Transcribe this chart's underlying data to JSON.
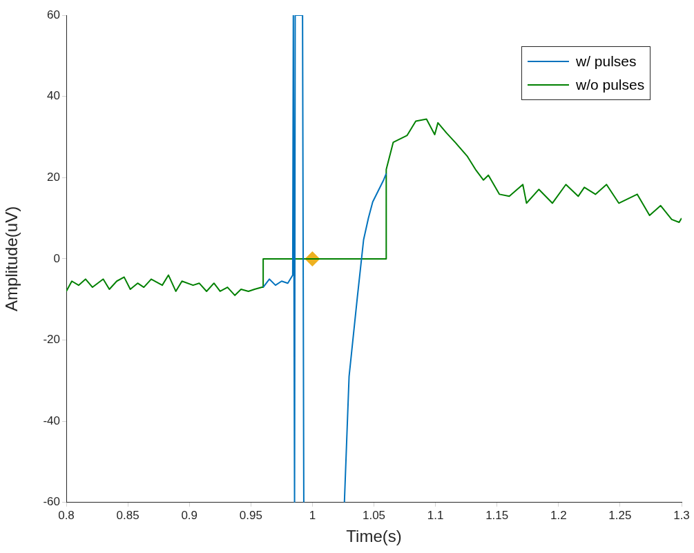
{
  "chart_data": {
    "type": "line",
    "xlabel": "Time(s)",
    "ylabel": "Amplitude(uV)",
    "xlim": [
      0.8,
      1.3
    ],
    "ylim": [
      -60,
      60
    ],
    "xticks": [
      0.8,
      0.85,
      0.9,
      0.95,
      1,
      1.05,
      1.1,
      1.15,
      1.2,
      1.25,
      1.3
    ],
    "yticks": [
      -60,
      -40,
      -20,
      0,
      20,
      40,
      60
    ],
    "grid": false,
    "legend": "top right",
    "marker": "none",
    "line_style": "solid",
    "series": [
      {
        "name": "w/ pulses",
        "color": "#0072bd",
        "x": [
          0.96,
          0.965,
          0.97,
          0.975,
          0.98,
          0.984,
          0.9845,
          0.9855,
          0.986,
          0.992,
          0.993,
          1.0,
          1.026,
          1.0298,
          1.0365,
          1.0416,
          1.0455,
          1.049,
          1.058,
          1.06
        ],
        "values": [
          -7,
          -5,
          -6.5,
          -5.5,
          -6,
          -4,
          60,
          -60,
          60,
          60,
          -60,
          null,
          -60,
          -29,
          -9.5,
          4.7,
          10,
          14,
          19.5,
          21
        ]
      },
      {
        "name": "w/o pulses",
        "color": "#008000",
        "x": [
          0.8,
          0.8045,
          0.81,
          0.8157,
          0.8213,
          0.83,
          0.835,
          0.841,
          0.847,
          0.852,
          0.858,
          0.863,
          0.869,
          0.878,
          0.883,
          0.889,
          0.894,
          0.903,
          0.908,
          0.914,
          0.92,
          0.925,
          0.931,
          0.937,
          0.942,
          0.948,
          0.953,
          0.959,
          0.96,
          0.96,
          1.06,
          1.06,
          1.0657,
          1.077,
          1.084,
          1.0927,
          1.0994,
          1.102,
          1.109,
          1.116,
          1.126,
          1.133,
          1.139,
          1.143,
          1.152,
          1.16,
          1.171,
          1.174,
          1.184,
          1.195,
          1.206,
          1.216,
          1.221,
          1.23,
          1.239,
          1.249,
          1.264,
          1.274,
          1.283,
          1.292,
          1.298,
          1.3
        ],
        "values": [
          -8,
          -5.5,
          -6.5,
          -5,
          -7,
          -5,
          -7.5,
          -5.5,
          -4.5,
          -7.5,
          -6,
          -7,
          -5,
          -6.5,
          -4,
          -8,
          -5.5,
          -6.5,
          -6,
          -8,
          -6,
          -8,
          -7,
          -9,
          -7.5,
          -8,
          -7.5,
          -7,
          -7,
          0,
          0,
          22,
          28.7,
          30.4,
          33.9,
          34.4,
          30.6,
          33.5,
          31,
          28.7,
          25.2,
          21.8,
          19.4,
          20.6,
          15.9,
          15.4,
          18.3,
          13.7,
          17.1,
          13.7,
          18.3,
          15.4,
          17.6,
          15.9,
          18.3,
          13.7,
          15.9,
          10.7,
          13.1,
          9.7,
          9,
          10
        ]
      },
      {
        "type": "scatter",
        "marker": "diamond",
        "color": "#edb120",
        "x": [
          1.0
        ],
        "values": [
          0
        ]
      }
    ]
  }
}
